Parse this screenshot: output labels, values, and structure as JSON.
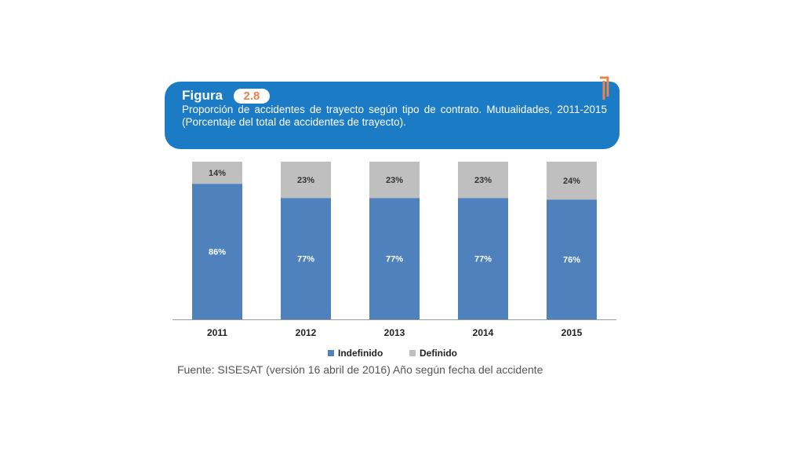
{
  "figure": {
    "label": "Figura",
    "number": "2.8",
    "title": "Proporción de accidentes de trayecto según tipo de contrato. Mutualidades, 2011-2015 (Porcentaje del total de accidentes de trayecto)."
  },
  "colors": {
    "header_bg": "#1b7bc4",
    "indefinido": "#4f81bd",
    "definido": "#bfbfbf",
    "accent": "#e8834a"
  },
  "chart_data": {
    "type": "bar",
    "stacked": true,
    "categories": [
      "2011",
      "2012",
      "2013",
      "2014",
      "2015"
    ],
    "series": [
      {
        "name": "Indefinido",
        "values": [
          86,
          77,
          77,
          77,
          76
        ],
        "labels": [
          "86%",
          "77%",
          "77%",
          "77%",
          "76%"
        ]
      },
      {
        "name": "Definido",
        "values": [
          14,
          23,
          23,
          23,
          24
        ],
        "labels": [
          "14%",
          "23%",
          "23%",
          "23%",
          "24%"
        ]
      }
    ],
    "ylim": [
      0,
      100
    ],
    "legend_position": "bottom",
    "grid": false
  },
  "source": "Fuente: SISESAT (versión 16 abril de 2016) Año según fecha del accidente"
}
